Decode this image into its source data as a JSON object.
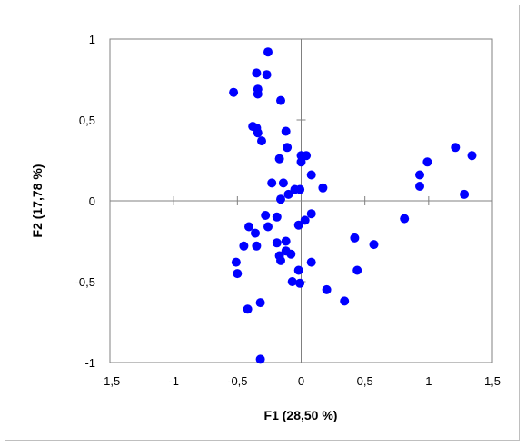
{
  "chart_data": {
    "type": "scatter",
    "title": "",
    "xlabel": "F1 (28,50 %)",
    "ylabel": "F2 (17,78 %)",
    "xlim": [
      -1.5,
      1.5
    ],
    "ylim": [
      -1,
      1
    ],
    "x_ticks": [
      "-1,5",
      "-1",
      "-0,5",
      "0",
      "0,5",
      "1",
      "1,5"
    ],
    "y_ticks": [
      "-1",
      "-0,5",
      "0",
      "0,5",
      "1"
    ],
    "grid": false,
    "legend": "none",
    "marker_color": "#0000ff",
    "axis_color": "#808080",
    "series": [
      {
        "points": [
          [
            -0.26,
            0.92
          ],
          [
            -0.35,
            0.79
          ],
          [
            -0.27,
            0.78
          ],
          [
            -0.53,
            0.67
          ],
          [
            -0.34,
            0.69
          ],
          [
            -0.34,
            0.66
          ],
          [
            -0.16,
            0.62
          ],
          [
            -0.38,
            0.46
          ],
          [
            -0.35,
            0.45
          ],
          [
            -0.34,
            0.42
          ],
          [
            -0.12,
            0.43
          ],
          [
            -0.31,
            0.37
          ],
          [
            -0.11,
            0.33
          ],
          [
            -0.17,
            0.26
          ],
          [
            0.0,
            0.28
          ],
          [
            0.04,
            0.28
          ],
          [
            0.0,
            0.24
          ],
          [
            0.08,
            0.16
          ],
          [
            1.21,
            0.33
          ],
          [
            1.34,
            0.28
          ],
          [
            0.99,
            0.24
          ],
          [
            0.93,
            0.16
          ],
          [
            0.93,
            0.09
          ],
          [
            1.28,
            0.04
          ],
          [
            -0.23,
            0.11
          ],
          [
            -0.14,
            0.11
          ],
          [
            -0.1,
            0.04
          ],
          [
            -0.05,
            0.07
          ],
          [
            -0.01,
            0.07
          ],
          [
            0.17,
            0.08
          ],
          [
            -0.16,
            0.01
          ],
          [
            -0.28,
            -0.09
          ],
          [
            -0.19,
            -0.1
          ],
          [
            -0.02,
            -0.15
          ],
          [
            0.03,
            -0.12
          ],
          [
            0.08,
            -0.08
          ],
          [
            0.81,
            -0.11
          ],
          [
            -0.41,
            -0.16
          ],
          [
            -0.36,
            -0.2
          ],
          [
            -0.26,
            -0.16
          ],
          [
            -0.45,
            -0.28
          ],
          [
            -0.35,
            -0.28
          ],
          [
            -0.19,
            -0.26
          ],
          [
            -0.12,
            -0.25
          ],
          [
            -0.12,
            -0.31
          ],
          [
            -0.08,
            -0.33
          ],
          [
            -0.17,
            -0.34
          ],
          [
            -0.16,
            -0.37
          ],
          [
            0.42,
            -0.23
          ],
          [
            0.57,
            -0.27
          ],
          [
            -0.51,
            -0.38
          ],
          [
            -0.5,
            -0.45
          ],
          [
            -0.02,
            -0.43
          ],
          [
            0.08,
            -0.38
          ],
          [
            0.44,
            -0.43
          ],
          [
            -0.07,
            -0.5
          ],
          [
            -0.01,
            -0.51
          ],
          [
            0.2,
            -0.55
          ],
          [
            0.34,
            -0.62
          ],
          [
            -0.32,
            -0.63
          ],
          [
            -0.42,
            -0.67
          ],
          [
            -0.32,
            -0.98
          ]
        ]
      }
    ]
  }
}
